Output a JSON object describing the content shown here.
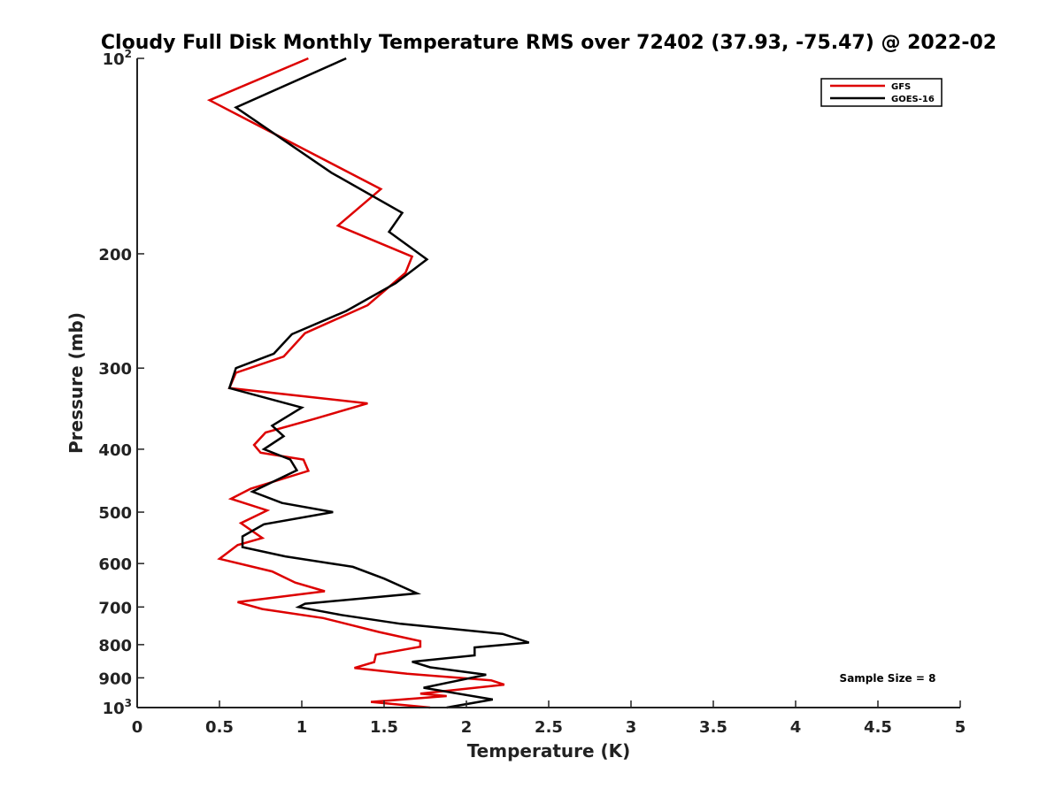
{
  "chart_data": {
    "type": "line",
    "title": "Cloudy Full Disk Monthly Temperature RMS over 72402 (37.93, -75.47) @ 2022-02",
    "xlabel": "Temperature (K)",
    "ylabel": "Pressure (mb)",
    "xlim": [
      0,
      5
    ],
    "ylim": [
      100,
      1000
    ],
    "yscale": "log",
    "yreversed": true,
    "grid": false,
    "legend_position": "top-right",
    "x_ticks": [
      0,
      0.5,
      1,
      1.5,
      2,
      2.5,
      3,
      3.5,
      4,
      4.5,
      5
    ],
    "x_tick_labels": [
      "0",
      "0.5",
      "1",
      "1.5",
      "2",
      "2.5",
      "3",
      "3.5",
      "4",
      "4.5",
      "5"
    ],
    "y_ticks": [
      100,
      200,
      300,
      400,
      500,
      600,
      700,
      800,
      900,
      1000
    ],
    "y_tick_labels": [
      {
        "base": "10",
        "sup": "2"
      },
      {
        "base": "200",
        "sup": ""
      },
      {
        "base": "300",
        "sup": ""
      },
      {
        "base": "400",
        "sup": ""
      },
      {
        "base": "500",
        "sup": ""
      },
      {
        "base": "600",
        "sup": ""
      },
      {
        "base": "700",
        "sup": ""
      },
      {
        "base": "800",
        "sup": ""
      },
      {
        "base": "900",
        "sup": ""
      },
      {
        "base": "10",
        "sup": "3"
      }
    ],
    "annotation": "Sample Size = 8",
    "series": [
      {
        "name": "GFS",
        "color": "#dd0000",
        "points": [
          [
            1.04,
            100
          ],
          [
            0.44,
            116
          ],
          [
            1.48,
            159
          ],
          [
            1.22,
            181
          ],
          [
            1.67,
            202
          ],
          [
            1.63,
            214
          ],
          [
            1.4,
            240
          ],
          [
            1.02,
            265
          ],
          [
            0.89,
            288
          ],
          [
            0.6,
            305
          ],
          [
            0.56,
            322
          ],
          [
            1.4,
            340
          ],
          [
            1.08,
            359
          ],
          [
            0.78,
            377
          ],
          [
            0.71,
            394
          ],
          [
            0.75,
            405
          ],
          [
            1.01,
            415
          ],
          [
            1.04,
            432
          ],
          [
            0.69,
            460
          ],
          [
            0.57,
            477
          ],
          [
            0.79,
            497
          ],
          [
            0.63,
            520
          ],
          [
            0.76,
            548
          ],
          [
            0.61,
            562
          ],
          [
            0.5,
            590
          ],
          [
            0.82,
            617
          ],
          [
            0.96,
            642
          ],
          [
            1.14,
            662
          ],
          [
            0.61,
            688
          ],
          [
            0.76,
            705
          ],
          [
            1.13,
            728
          ],
          [
            1.47,
            765
          ],
          [
            1.72,
            790
          ],
          [
            1.72,
            806
          ],
          [
            1.45,
            829
          ],
          [
            1.44,
            851
          ],
          [
            1.32,
            869
          ],
          [
            1.64,
            887
          ],
          [
            2.15,
            908
          ],
          [
            2.23,
            922
          ],
          [
            1.72,
            952
          ],
          [
            1.88,
            960
          ],
          [
            1.42,
            980
          ],
          [
            1.78,
            1000
          ]
        ]
      },
      {
        "name": "GOES-16",
        "color": "#000000",
        "points": [
          [
            1.27,
            100
          ],
          [
            0.6,
            119
          ],
          [
            1.18,
            150
          ],
          [
            1.61,
            173
          ],
          [
            1.53,
            185
          ],
          [
            1.76,
            204
          ],
          [
            1.57,
            222
          ],
          [
            1.27,
            245
          ],
          [
            0.94,
            266
          ],
          [
            0.83,
            285
          ],
          [
            0.6,
            300
          ],
          [
            0.56,
            322
          ],
          [
            1.0,
            345
          ],
          [
            0.82,
            368
          ],
          [
            0.89,
            382
          ],
          [
            0.77,
            400
          ],
          [
            0.93,
            415
          ],
          [
            0.97,
            431
          ],
          [
            0.7,
            465
          ],
          [
            0.88,
            484
          ],
          [
            1.19,
            500
          ],
          [
            0.77,
            522
          ],
          [
            0.64,
            545
          ],
          [
            0.64,
            566
          ],
          [
            0.9,
            585
          ],
          [
            1.31,
            607
          ],
          [
            1.5,
            633
          ],
          [
            1.7,
            667
          ],
          [
            1.02,
            692
          ],
          [
            0.98,
            700
          ],
          [
            1.24,
            720
          ],
          [
            1.6,
            743
          ],
          [
            2.22,
            770
          ],
          [
            2.38,
            794
          ],
          [
            2.05,
            808
          ],
          [
            2.05,
            831
          ],
          [
            1.67,
            850
          ],
          [
            1.78,
            867
          ],
          [
            2.12,
            890
          ],
          [
            1.74,
            932
          ],
          [
            2.16,
            972
          ],
          [
            1.88,
            1000
          ]
        ]
      }
    ]
  }
}
